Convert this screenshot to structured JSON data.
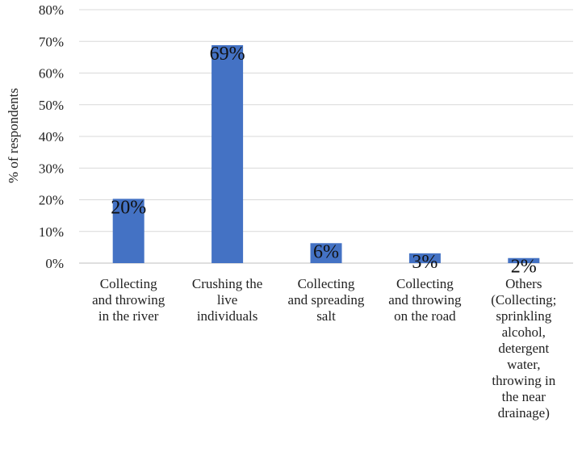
{
  "chart_data": {
    "type": "bar",
    "title": "",
    "xlabel": "",
    "ylabel": "% of respondents",
    "ylim": [
      0,
      80
    ],
    "yticks": [
      "0%",
      "10%",
      "20%",
      "30%",
      "40%",
      "50%",
      "60%",
      "70%",
      "80%"
    ],
    "grid": true,
    "bar_color": "#4472C4",
    "categories": [
      [
        "Collecting",
        "and throwing",
        "in the river"
      ],
      [
        "Crushing the",
        "live",
        "individuals"
      ],
      [
        "Collecting",
        "and spreading",
        "salt"
      ],
      [
        "Collecting",
        "and throwing",
        "on the road"
      ],
      [
        "Others",
        "(Collecting;",
        "sprinkling",
        "alcohol,",
        "detergent",
        "water,",
        "throwing in",
        "the near",
        "drainage)"
      ]
    ],
    "values": [
      20.3,
      68.8,
      6.3,
      3.1,
      1.6
    ],
    "data_labels": [
      "20%",
      "69%",
      "6%",
      "3%",
      "2%"
    ]
  }
}
